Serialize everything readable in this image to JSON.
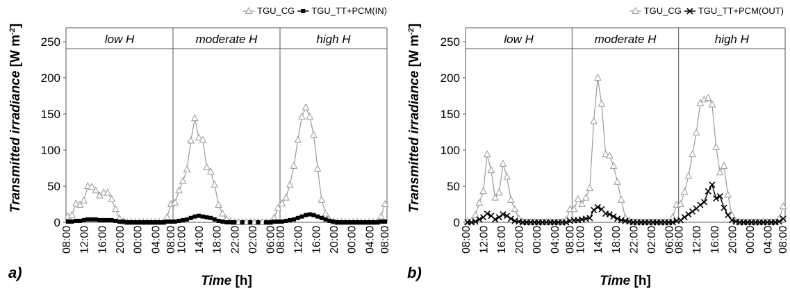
{
  "chart_data": [
    {
      "panel": "a)",
      "type": "line",
      "ylabel_main": "Transmitted irradiance",
      "ylabel_unit": "[W m",
      "ylabel_exp": "-2",
      "ylabel_close": "]",
      "xlabel_main": "Time",
      "xlabel_unit": " [h]",
      "ylim": [
        0,
        250
      ],
      "yticks": [
        0,
        50,
        100,
        150,
        200,
        250
      ],
      "segments": [
        {
          "label": "low H",
          "xticks": [
            "08:00",
            "12:00",
            "16:00",
            "20:00",
            "00:00",
            "04:00",
            "08:00"
          ]
        },
        {
          "label": "moderate H",
          "xticks": [
            "10:00",
            "14:00",
            "18:00",
            "22:00",
            "02:00",
            "06:00"
          ]
        },
        {
          "label": "high H",
          "xticks": [
            "08:00",
            "12:00",
            "16:00",
            "20:00",
            "00:00",
            "04:00",
            "08:00"
          ]
        }
      ],
      "series": [
        {
          "name": "TGU_CG",
          "marker": "triangle",
          "color": "#999999",
          "segments": [
            [
              8,
              10,
              26,
              24,
              30,
              50,
              49,
              44,
              37,
              41,
              41,
              32,
              18,
              5,
              1,
              0,
              0,
              0,
              0,
              0,
              0,
              0,
              0,
              0,
              0,
              7,
              25
            ],
            [
              27,
              44,
              57,
              73,
              113,
              144,
              117,
              114,
              76,
              70,
              52,
              24,
              12,
              4,
              1,
              0,
              0,
              0,
              0,
              0,
              0,
              0,
              0,
              0,
              0,
              6,
              20
            ],
            [
              26,
              34,
              52,
              78,
              114,
              146,
              159,
              146,
              121,
              74,
              31,
              12,
              3,
              1,
              0,
              0,
              0,
              0,
              0,
              0,
              0,
              0,
              0,
              0,
              0,
              8,
              25
            ]
          ]
        },
        {
          "name": "TGU_TT+PCM(IN)",
          "marker": "square",
          "color": "#000000",
          "segments": [
            [
              1,
              1,
              2,
              2,
              3,
              4,
              4,
              4,
              3,
              3,
              3,
              3,
              2,
              1,
              1,
              0,
              0,
              0,
              0,
              0,
              0,
              0,
              0,
              0,
              0,
              1,
              1
            ],
            [
              1,
              2,
              3,
              4,
              6,
              8,
              9,
              8,
              7,
              6,
              4,
              2,
              1,
              0,
              0,
              0,
              null,
              0,
              null,
              0,
              null,
              0,
              null,
              0,
              0,
              1,
              1
            ],
            [
              1,
              2,
              3,
              4,
              6,
              8,
              10,
              11,
              10,
              8,
              6,
              4,
              2,
              1,
              0,
              0,
              0,
              0,
              0,
              0,
              0,
              0,
              0,
              0,
              0,
              1,
              1
            ]
          ]
        }
      ]
    },
    {
      "panel": "b)",
      "type": "line",
      "ylabel_main": "Transmitted irradiance",
      "ylabel_unit": "[W m",
      "ylabel_exp": "-2",
      "ylabel_close": "]",
      "xlabel_main": "Time",
      "xlabel_unit": " [h]",
      "ylim": [
        0,
        250
      ],
      "yticks": [
        0,
        50,
        100,
        150,
        200,
        250
      ],
      "segments": [
        {
          "label": "low H",
          "xticks": [
            "08:00",
            "12:00",
            "16:00",
            "20:00",
            "00:00",
            "04:00",
            "08:00"
          ]
        },
        {
          "label": "moderate H",
          "xticks": [
            "10:00",
            "14:00",
            "18:00",
            "22:00",
            "02:00",
            "06:00"
          ]
        },
        {
          "label": "high H",
          "xticks": [
            "08:00",
            "12:00",
            "16:00",
            "20:00",
            "00:00",
            "04:00",
            "08:00"
          ]
        }
      ],
      "series": [
        {
          "name": "TGU_CG",
          "marker": "triangle",
          "color": "#999999",
          "segments": [
            [
              1,
              2,
              10,
              27,
              43,
              94,
              72,
              34,
              41,
              81,
              63,
              31,
              18,
              5,
              1,
              0,
              0,
              0,
              0,
              0,
              0,
              0,
              0,
              0,
              0,
              3,
              18
            ],
            [
              18,
              32,
              25,
              34,
              47,
              140,
              200,
              164,
              94,
              92,
              78,
              56,
              31,
              6,
              2,
              0,
              0,
              0,
              0,
              0,
              0,
              0,
              0,
              0,
              0,
              7,
              24
            ],
            [
              25,
              42,
              64,
              94,
              124,
              165,
              170,
              172,
              163,
              104,
              69,
              78,
              38,
              10,
              1,
              0,
              0,
              0,
              0,
              0,
              0,
              0,
              0,
              0,
              0,
              5,
              22
            ]
          ]
        },
        {
          "name": "TGU_TT+PCM(OUT)",
          "marker": "cross",
          "color": "#000000",
          "segments": [
            [
              0,
              0,
              1,
              4,
              7,
              12,
              9,
              4,
              7,
              11,
              9,
              5,
              2,
              1,
              0,
              0,
              0,
              0,
              0,
              0,
              0,
              0,
              0,
              0,
              0,
              0,
              2
            ],
            [
              3,
              3,
              4,
              5,
              6,
              17,
              21,
              18,
              12,
              11,
              8,
              5,
              3,
              2,
              1,
              0,
              0,
              0,
              0,
              0,
              0,
              0,
              0,
              0,
              0,
              0,
              2
            ],
            [
              3,
              7,
              11,
              15,
              19,
              24,
              28,
              43,
              52,
              33,
              36,
              20,
              10,
              3,
              1,
              0,
              0,
              0,
              0,
              0,
              0,
              0,
              0,
              0,
              0,
              1,
              5
            ]
          ]
        }
      ]
    }
  ]
}
